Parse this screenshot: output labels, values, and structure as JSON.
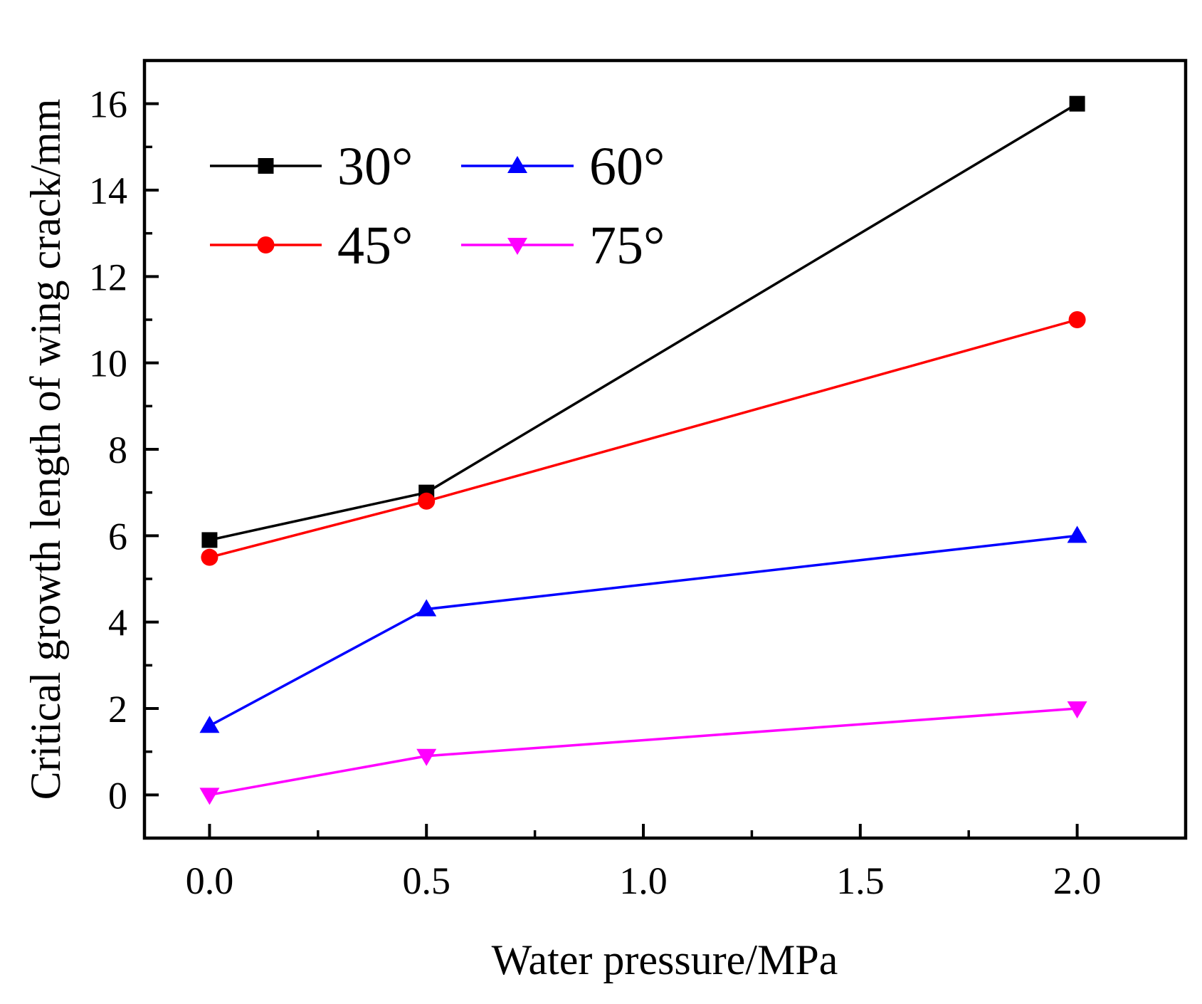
{
  "chart_data": {
    "type": "line",
    "title": "",
    "xlabel": "Water pressure/MPa",
    "ylabel": "Critical growth length of wing crack/mm",
    "xlim": [
      -0.15,
      2.25
    ],
    "ylim": [
      -1,
      17
    ],
    "x_major_ticks": [
      0.0,
      0.5,
      1.0,
      1.5,
      2.0
    ],
    "x_tick_labels": [
      "0.0",
      "0.5",
      "1.0",
      "1.5",
      "2.0"
    ],
    "y_major_ticks": [
      0,
      2,
      4,
      6,
      8,
      10,
      12,
      14,
      16
    ],
    "y_tick_labels": [
      "0",
      "2",
      "4",
      "6",
      "8",
      "10",
      "12",
      "14",
      "16"
    ],
    "grid": false,
    "legend_position": "top-left",
    "series": [
      {
        "name": "30°",
        "color": "#000000",
        "marker": "square",
        "x": [
          0.0,
          0.5,
          2.0
        ],
        "values": [
          5.9,
          7.0,
          16.0
        ]
      },
      {
        "name": "45°",
        "color": "#ff0000",
        "marker": "circle",
        "x": [
          0.0,
          0.5,
          2.0
        ],
        "values": [
          5.5,
          6.8,
          11.0
        ]
      },
      {
        "name": "60°",
        "color": "#0000ff",
        "marker": "triangle-up",
        "x": [
          0.0,
          0.5,
          2.0
        ],
        "values": [
          1.6,
          4.3,
          6.0
        ]
      },
      {
        "name": "75°",
        "color": "#ff00ff",
        "marker": "triangle-down",
        "x": [
          0.0,
          0.5,
          2.0
        ],
        "values": [
          0.0,
          0.9,
          2.0
        ]
      }
    ]
  }
}
